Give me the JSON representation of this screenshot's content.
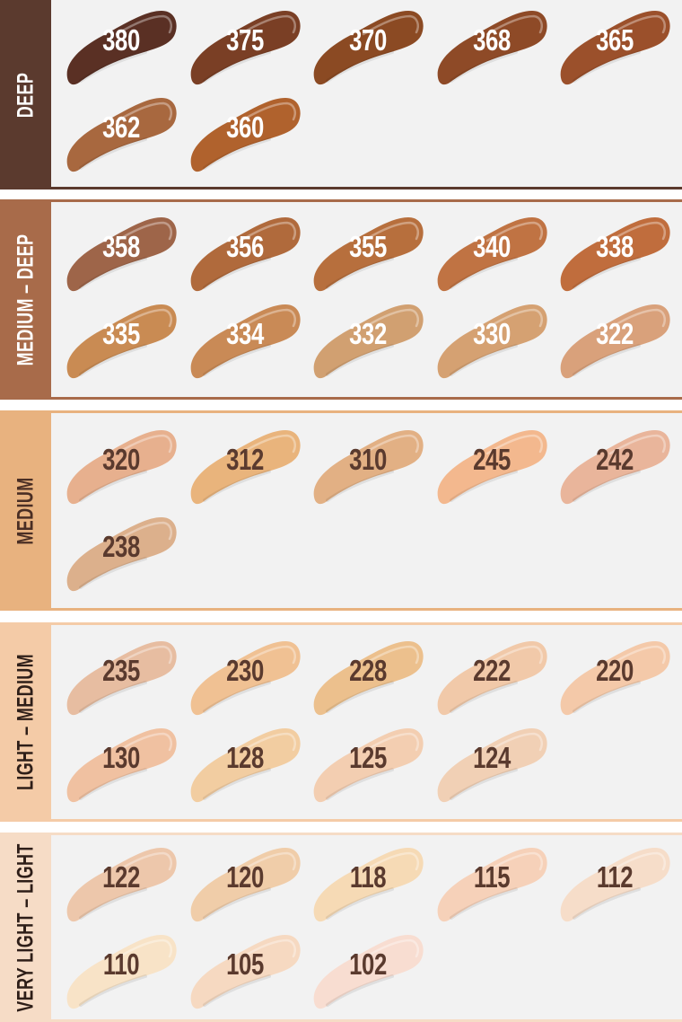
{
  "sections": [
    {
      "label": "DEEP",
      "color": "#5b3a2e",
      "text_color": "#ffffff",
      "num_color": "#ffffff",
      "shades": [
        {
          "code": "380",
          "color": "#5a3024"
        },
        {
          "code": "375",
          "color": "#7a3f25"
        },
        {
          "code": "370",
          "color": "#8b4a23"
        },
        {
          "code": "368",
          "color": "#8e4a27"
        },
        {
          "code": "365",
          "color": "#9b502b"
        },
        {
          "code": "362",
          "color": "#a8683f"
        },
        {
          "code": "360",
          "color": "#b0622d"
        }
      ]
    },
    {
      "label": "MEDIUM – DEEP",
      "color": "#a86b4a",
      "text_color": "#ffffff",
      "num_color": "#ffffff",
      "shades": [
        {
          "code": "358",
          "color": "#9e6549"
        },
        {
          "code": "356",
          "color": "#b06a3c"
        },
        {
          "code": "355",
          "color": "#b76f3d"
        },
        {
          "code": "340",
          "color": "#c07343"
        },
        {
          "code": "338",
          "color": "#c06d3d"
        },
        {
          "code": "335",
          "color": "#c98b53"
        },
        {
          "code": "334",
          "color": "#c98a56"
        },
        {
          "code": "332",
          "color": "#d1a071"
        },
        {
          "code": "330",
          "color": "#d5a172"
        },
        {
          "code": "322",
          "color": "#d9a17b"
        }
      ]
    },
    {
      "label": "MEDIUM",
      "color": "#e8b27f",
      "text_color": "#4a2e24",
      "num_color": "#5a3a2e",
      "shades": [
        {
          "code": "320",
          "color": "#e7b08e"
        },
        {
          "code": "312",
          "color": "#e9b47c"
        },
        {
          "code": "310",
          "color": "#e2b084"
        },
        {
          "code": "245",
          "color": "#f3b88e"
        },
        {
          "code": "242",
          "color": "#e9b59b"
        },
        {
          "code": "238",
          "color": "#dcb08c"
        }
      ]
    },
    {
      "label": "LIGHT – MEDIUM",
      "color": "#f4cba7",
      "text_color": "#2e1e18",
      "num_color": "#5a3a2e",
      "shades": [
        {
          "code": "235",
          "color": "#e7bda1"
        },
        {
          "code": "230",
          "color": "#f0c193"
        },
        {
          "code": "228",
          "color": "#ecc08d"
        },
        {
          "code": "222",
          "color": "#f1c9a9"
        },
        {
          "code": "220",
          "color": "#f4c9a9"
        },
        {
          "code": "130",
          "color": "#f0c1a1"
        },
        {
          "code": "128",
          "color": "#f2cda1"
        },
        {
          "code": "125",
          "color": "#f3ceb1"
        },
        {
          "code": "124",
          "color": "#f1d0b5"
        }
      ]
    },
    {
      "label": "VERY LIGHT – LIGHT",
      "color": "#f6dcc6",
      "text_color": "#2e1e18",
      "num_color": "#5a3a2e",
      "shades": [
        {
          "code": "122",
          "color": "#edc7ab"
        },
        {
          "code": "120",
          "color": "#f0cda9"
        },
        {
          "code": "118",
          "color": "#f6dab5"
        },
        {
          "code": "115",
          "color": "#f6d1b9"
        },
        {
          "code": "112",
          "color": "#f6ddc9"
        },
        {
          "code": "110",
          "color": "#f8e3c7"
        },
        {
          "code": "105",
          "color": "#f6d9c1"
        },
        {
          "code": "102",
          "color": "#f8ddd1"
        }
      ]
    }
  ]
}
